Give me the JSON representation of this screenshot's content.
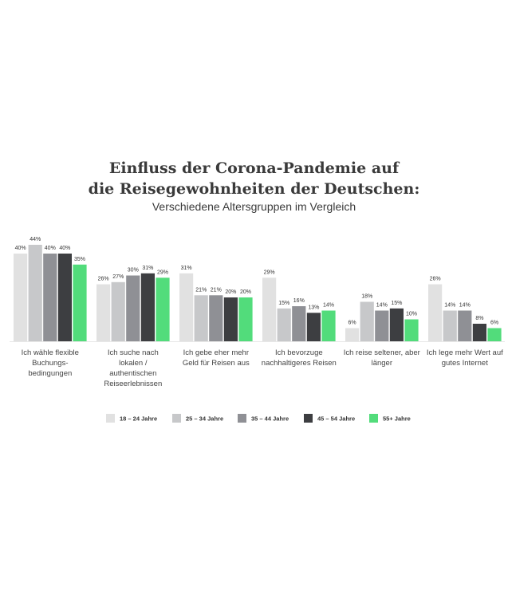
{
  "chart_data": {
    "type": "bar",
    "title_lines": [
      "Einfluss der Corona-Pandemie auf",
      "die Reisegewohnheiten der Deutschen:"
    ],
    "subtitle": "Verschiedene Altersgruppen im Vergleich",
    "categories": [
      [
        "Ich wähle flexible",
        "Buchungs-",
        "bedingungen"
      ],
      [
        "Ich suche nach",
        "lokalen /",
        "authentischen",
        "Reiseerlebnissen"
      ],
      [
        "Ich gebe eher mehr",
        "Geld für Reisen aus"
      ],
      [
        "Ich bevorzuge",
        "nachhaltigeres Reisen"
      ],
      [
        "Ich reise seltener, aber",
        "länger"
      ],
      [
        "Ich lege mehr Wert auf",
        "gutes Internet"
      ]
    ],
    "series": [
      {
        "name": "18 – 24 Jahre",
        "color": "#e1e1e1",
        "values": [
          40,
          26,
          31,
          29,
          6,
          26
        ]
      },
      {
        "name": "25 – 34 Jahre",
        "color": "#c7c8ca",
        "values": [
          44,
          27,
          21,
          15,
          18,
          14
        ]
      },
      {
        "name": "35 – 44 Jahre",
        "color": "#8f9095",
        "values": [
          40,
          30,
          21,
          16,
          14,
          14
        ]
      },
      {
        "name": "45 – 54 Jahre",
        "color": "#3d3e41",
        "values": [
          40,
          31,
          20,
          13,
          15,
          8
        ]
      },
      {
        "name": "55+ Jahre",
        "color": "#52dc7b",
        "values": [
          35,
          29,
          20,
          14,
          10,
          6
        ]
      }
    ],
    "value_suffix": "%",
    "ylim": [
      0,
      44
    ],
    "grid": false,
    "legend_position": "bottom"
  }
}
